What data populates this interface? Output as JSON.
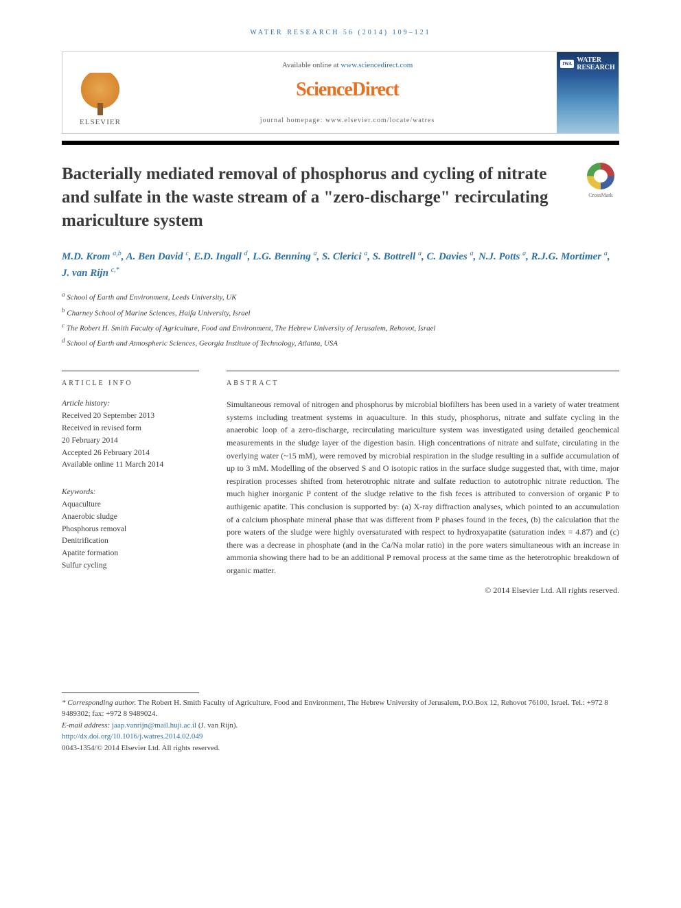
{
  "header": {
    "citation": "WATER RESEARCH 56 (2014) 109–121",
    "available_prefix": "Available online at ",
    "available_link": "www.sciencedirect.com",
    "sciencedirect": "ScienceDirect",
    "homepage_label": "journal homepage: ",
    "homepage_url": "www.elsevier.com/locate/watres",
    "publisher_name": "ELSEVIER",
    "journal_badge": "IWA",
    "journal_title_line1": "WATER",
    "journal_title_line2": "RESEARCH",
    "crossmark": "CrossMark"
  },
  "article": {
    "title": "Bacterially mediated removal of phosphorus and cycling of nitrate and sulfate in the waste stream of a \"zero-discharge\" recirculating mariculture system",
    "authors_html": "M.D. Krom <sup>a,b</sup>, A. Ben David <sup>c</sup>, E.D. Ingall <sup>d</sup>, L.G. Benning <sup>a</sup>, S. Clerici <sup>a</sup>, S. Bottrell <sup>a</sup>, C. Davies <sup>a</sup>, N.J. Potts <sup>a</sup>, R.J.G. Mortimer <sup>a</sup>, J. van Rijn <sup>c,*</sup>",
    "affiliations": [
      {
        "sup": "a",
        "text": "School of Earth and Environment, Leeds University, UK"
      },
      {
        "sup": "b",
        "text": "Charney School of Marine Sciences, Haifa University, Israel"
      },
      {
        "sup": "c",
        "text": "The Robert H. Smith Faculty of Agriculture, Food and Environment, The Hebrew University of Jerusalem, Rehovot, Israel"
      },
      {
        "sup": "d",
        "text": "School of Earth and Atmospheric Sciences, Georgia Institute of Technology, Atlanta, USA"
      }
    ]
  },
  "info": {
    "label": "ARTICLE INFO",
    "history_label": "Article history:",
    "history": [
      "Received 20 September 2013",
      "Received in revised form",
      "20 February 2014",
      "Accepted 26 February 2014",
      "Available online 11 March 2014"
    ],
    "keywords_label": "Keywords:",
    "keywords": [
      "Aquaculture",
      "Anaerobic sludge",
      "Phosphorus removal",
      "Denitrification",
      "Apatite formation",
      "Sulfur cycling"
    ]
  },
  "abstract": {
    "label": "ABSTRACT",
    "text": "Simultaneous removal of nitrogen and phosphorus by microbial biofilters has been used in a variety of water treatment systems including treatment systems in aquaculture. In this study, phosphorus, nitrate and sulfate cycling in the anaerobic loop of a zero-discharge, recirculating mariculture system was investigated using detailed geochemical measurements in the sludge layer of the digestion basin. High concentrations of nitrate and sulfate, circulating in the overlying water (~15 mM), were removed by microbial respiration in the sludge resulting in a sulfide accumulation of up to 3 mM. Modelling of the observed S and O isotopic ratios in the surface sludge suggested that, with time, major respiration processes shifted from heterotrophic nitrate and sulfate reduction to autotrophic nitrate reduction. The much higher inorganic P content of the sludge relative to the fish feces is attributed to conversion of organic P to authigenic apatite. This conclusion is supported by: (a) X-ray diffraction analyses, which pointed to an accumulation of a calcium phosphate mineral phase that was different from P phases found in the feces, (b) the calculation that the pore waters of the sludge were highly oversaturated with respect to hydroxyapatite (saturation index = 4.87) and (c) there was a decrease in phosphate (and in the Ca/Na molar ratio) in the pore waters simultaneous with an increase in ammonia showing there had to be an additional P removal process at the same time as the heterotrophic breakdown of organic matter.",
    "copyright": "© 2014 Elsevier Ltd. All rights reserved."
  },
  "footer": {
    "corresponding_label": "* Corresponding author.",
    "corresponding_text": " The Robert H. Smith Faculty of Agriculture, Food and Environment, The Hebrew University of Jerusalem, P.O.Box 12, Rehovot 76100, Israel. Tel.: +972 8 9489302; fax: +972 8 9489024.",
    "email_label": "E-mail address: ",
    "email": "jaap.vanrijn@mail.huji.ac.il",
    "email_author": " (J. van Rijn).",
    "doi": "http://dx.doi.org/10.1016/j.watres.2014.02.049",
    "issn_line": "0043-1354/© 2014 Elsevier Ltd. All rights reserved."
  },
  "colors": {
    "link": "#2a6fa8",
    "orange": "#e9701f",
    "text": "#3a3a3a"
  }
}
